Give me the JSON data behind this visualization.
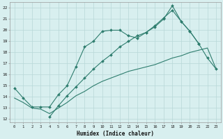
{
  "x_values": [
    0,
    1,
    2,
    3,
    4,
    5,
    6,
    7,
    8,
    9,
    10,
    11,
    12,
    13,
    14,
    15,
    16,
    17,
    18,
    19,
    20,
    21,
    22,
    23
  ],
  "line1": [
    14.8,
    13.9,
    13.1,
    13.1,
    13.1,
    14.2,
    15.0,
    16.7,
    18.5,
    19.0,
    19.9,
    20.0,
    20.0,
    19.5,
    19.3,
    19.8,
    20.3,
    21.0,
    22.2,
    20.8,
    19.9,
    18.8,
    null,
    null
  ],
  "line2": [
    null,
    null,
    null,
    null,
    12.2,
    13.2,
    14.1,
    14.9,
    15.7,
    16.5,
    17.2,
    17.8,
    18.5,
    19.0,
    19.5,
    19.8,
    20.4,
    21.1,
    21.8,
    20.8,
    19.9,
    18.8,
    17.5,
    16.5
  ],
  "line3": [
    13.9,
    13.5,
    13.0,
    12.9,
    12.5,
    13.0,
    13.5,
    14.1,
    14.5,
    15.0,
    15.4,
    15.7,
    16.0,
    16.3,
    16.5,
    16.7,
    16.9,
    17.2,
    17.5,
    17.7,
    18.0,
    18.2,
    18.4,
    16.5
  ],
  "color": "#2e7d6e",
  "bg_color": "#d8efef",
  "grid_color": "#b8d8d8",
  "ylabel_values": [
    12,
    13,
    14,
    15,
    16,
    17,
    18,
    19,
    20,
    21,
    22
  ],
  "xlabel": "Humidex (Indice chaleur)",
  "ylim": [
    11.7,
    22.5
  ],
  "xlim": [
    -0.5,
    23.5
  ]
}
